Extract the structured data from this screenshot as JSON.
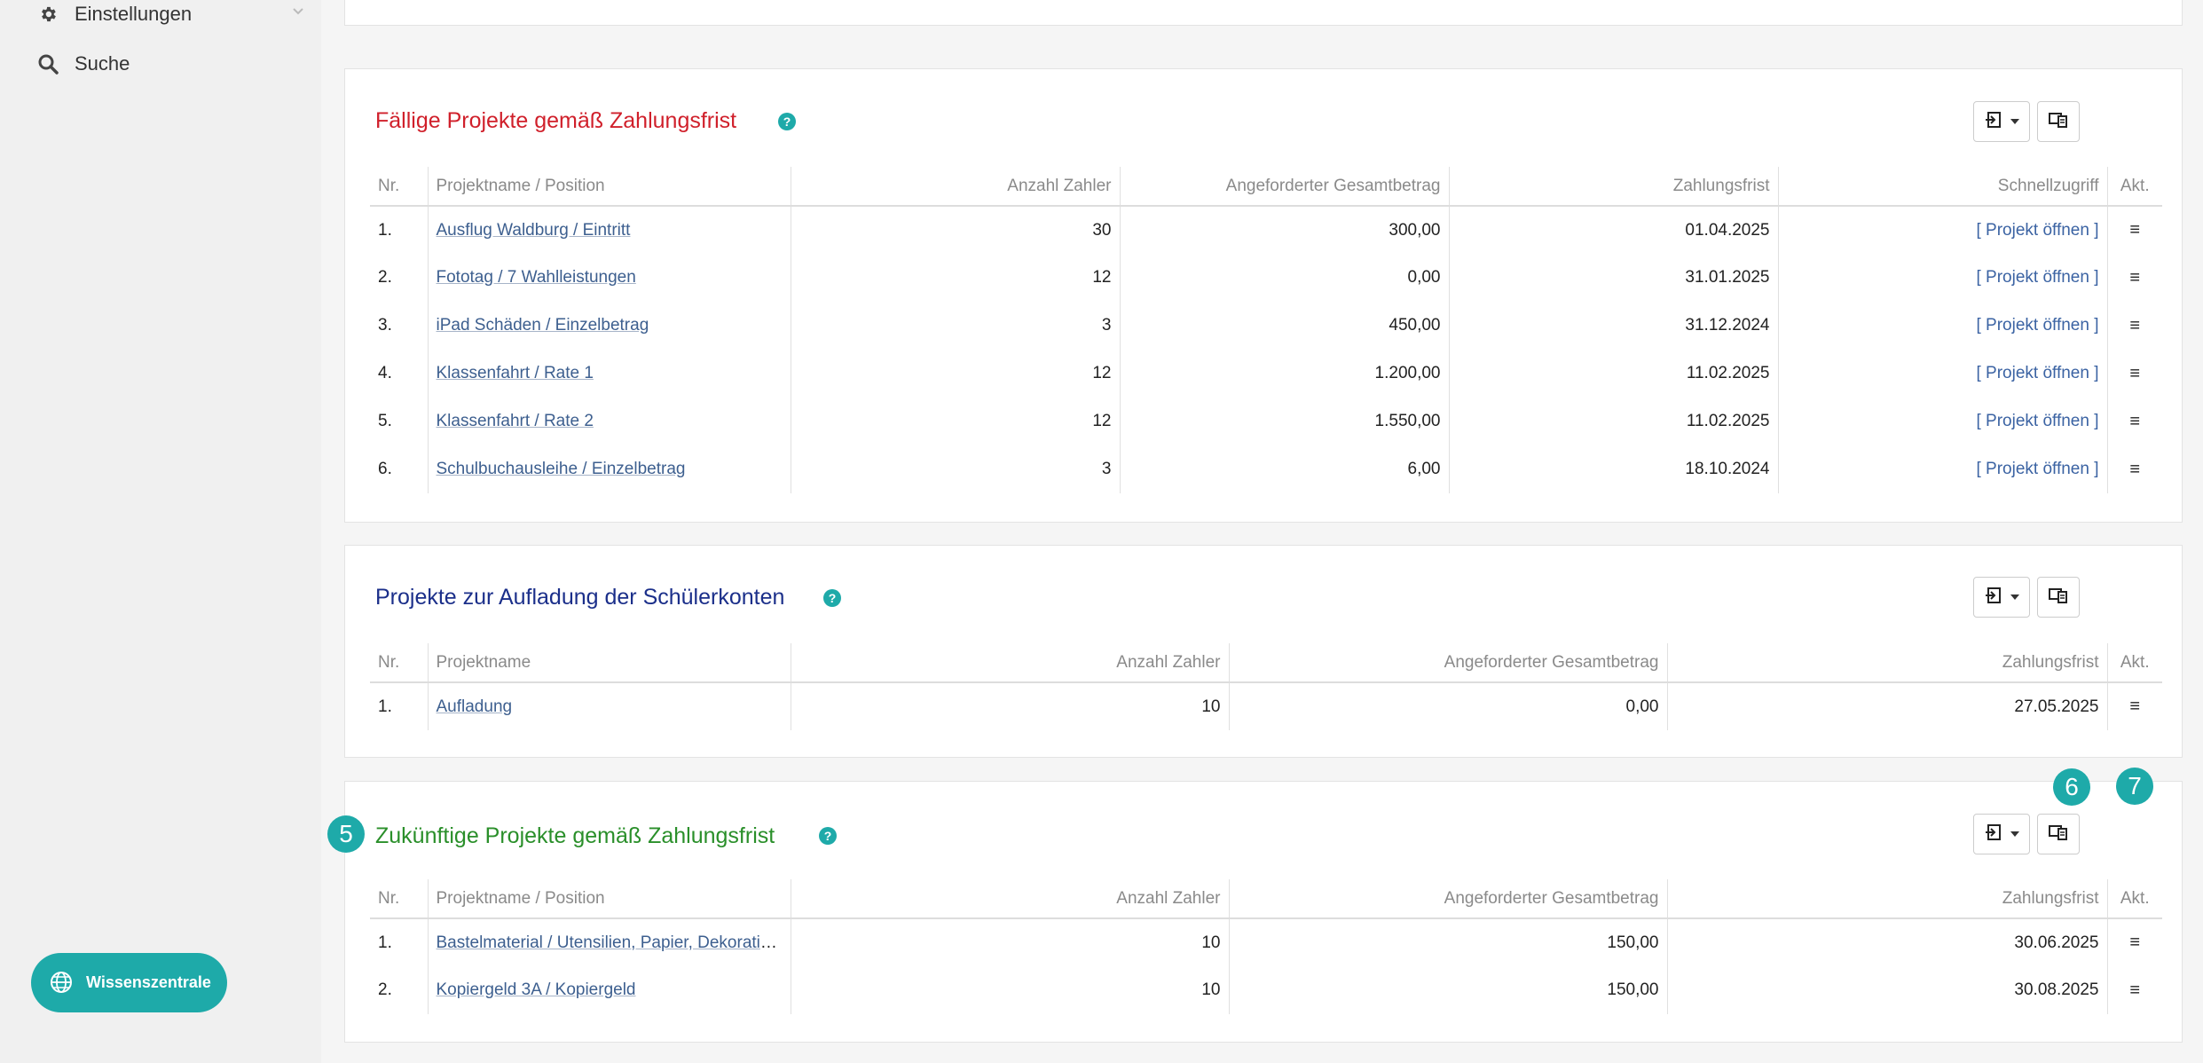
{
  "sidebar": {
    "settings_label": "Einstellungen",
    "search_label": "Suche",
    "knowledge_button": "Wissenszentrale"
  },
  "colors": {
    "accent": "#1eaaa9",
    "due_title": "#d0202b",
    "topup_title": "#1b2f8a",
    "future_title": "#2a8f2a"
  },
  "due": {
    "title": "Fällige Projekte gemäß Zahlungsfrist",
    "columns": [
      "Nr.",
      "Projektname / Position",
      "Anzahl Zahler",
      "Angeforderter Gesamtbetrag",
      "Zahlungsfrist",
      "Schnellzugriff",
      "Akt."
    ],
    "rows": [
      {
        "nr": "1.",
        "name": "Ausflug Waldburg / Eintritt",
        "payers": "30",
        "amount": "300,00",
        "deadline": "01.04.2025",
        "quick": "[ Projekt öffnen ]"
      },
      {
        "nr": "2.",
        "name": "Fototag / 7 Wahlleistungen",
        "payers": "12",
        "amount": "0,00",
        "deadline": "31.01.2025",
        "quick": "[ Projekt öffnen ]"
      },
      {
        "nr": "3.",
        "name": "iPad Schäden / Einzelbetrag",
        "payers": "3",
        "amount": "450,00",
        "deadline": "31.12.2024",
        "quick": "[ Projekt öffnen ]"
      },
      {
        "nr": "4.",
        "name": "Klassenfahrt / Rate 1",
        "payers": "12",
        "amount": "1.200,00",
        "deadline": "11.02.2025",
        "quick": "[ Projekt öffnen ]"
      },
      {
        "nr": "5.",
        "name": "Klassenfahrt / Rate 2",
        "payers": "12",
        "amount": "1.550,00",
        "deadline": "11.02.2025",
        "quick": "[ Projekt öffnen ]"
      },
      {
        "nr": "6.",
        "name": "Schulbuchausleihe / Einzelbetrag",
        "payers": "3",
        "amount": "6,00",
        "deadline": "18.10.2024",
        "quick": "[ Projekt öffnen ]"
      }
    ]
  },
  "topup": {
    "title": "Projekte zur Aufladung der Schülerkonten",
    "columns": [
      "Nr.",
      "Projektname",
      "Anzahl Zahler",
      "Angeforderter Gesamtbetrag",
      "Zahlungsfrist",
      "Akt."
    ],
    "rows": [
      {
        "nr": "1.",
        "name": "Aufladung",
        "payers": "10",
        "amount": "0,00",
        "deadline": "27.05.2025"
      }
    ]
  },
  "future": {
    "title": "Zukünftige Projekte gemäß Zahlungsfrist",
    "columns": [
      "Nr.",
      "Projektname / Position",
      "Anzahl Zahler",
      "Angeforderter Gesamtbetrag",
      "Zahlungsfrist",
      "Akt."
    ],
    "rows": [
      {
        "nr": "1.",
        "name": "Bastelmaterial / Utensilien, Papier, Dekoratio...",
        "payers": "10",
        "amount": "150,00",
        "deadline": "30.06.2025"
      },
      {
        "nr": "2.",
        "name": "Kopiergeld 3A / Kopiergeld",
        "payers": "10",
        "amount": "150,00",
        "deadline": "30.08.2025"
      }
    ]
  },
  "help_glyph": "?",
  "menu_glyph": "≡",
  "steps": {
    "s5": "5",
    "s6": "6",
    "s7": "7"
  }
}
